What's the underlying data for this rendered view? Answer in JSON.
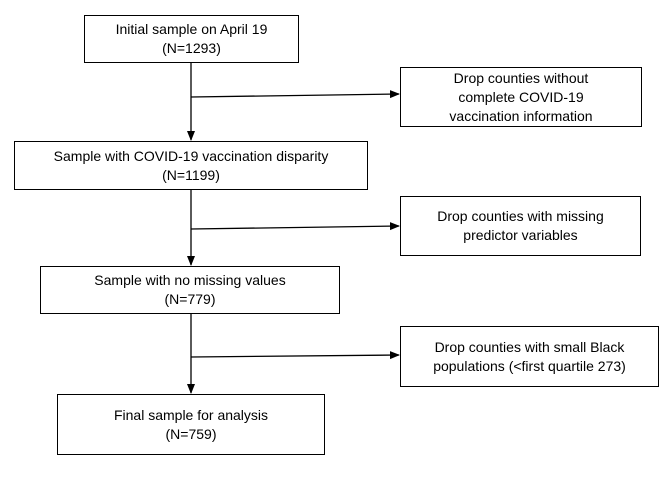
{
  "flowchart": {
    "steps": [
      {
        "lines": [
          "Initial sample on April 19",
          "(N=1293)"
        ]
      },
      {
        "lines": [
          "Sample with COVID-19 vaccination disparity",
          "(N=1199)"
        ]
      },
      {
        "lines": [
          "Sample with no missing values",
          "(N=779)"
        ]
      },
      {
        "lines": [
          "Final sample for analysis",
          "(N=759)"
        ]
      }
    ],
    "exclusions": [
      {
        "lines": [
          "Drop counties without",
          "complete COVID-19",
          "vaccination information"
        ]
      },
      {
        "lines": [
          "Drop counties with missing",
          "predictor variables"
        ]
      },
      {
        "lines": [
          "Drop counties with small Black",
          "populations (<first quartile 273)"
        ]
      }
    ]
  }
}
